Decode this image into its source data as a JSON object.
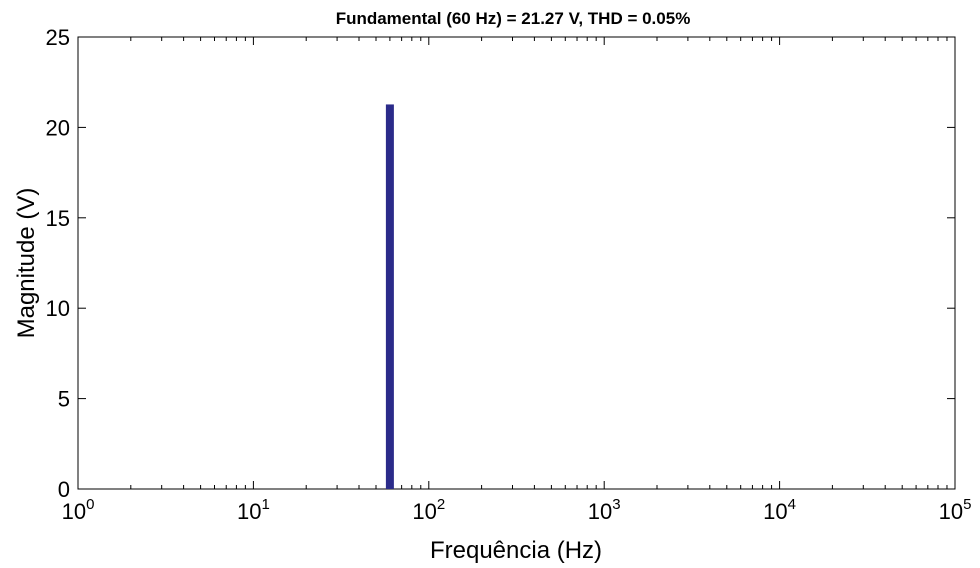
{
  "chart_data": {
    "type": "bar",
    "title": "Fundamental (60 Hz) = 21.27 V, THD = 0.05%",
    "xlabel": "Frequência (Hz)",
    "ylabel": "Magnitude (V)",
    "x_scale": "log",
    "xlim": [
      1,
      100000
    ],
    "ylim": [
      0,
      25
    ],
    "x_ticks": [
      {
        "base": "10",
        "exp": "0",
        "value": 1
      },
      {
        "base": "10",
        "exp": "1",
        "value": 10
      },
      {
        "base": "10",
        "exp": "2",
        "value": 100
      },
      {
        "base": "10",
        "exp": "3",
        "value": 1000
      },
      {
        "base": "10",
        "exp": "4",
        "value": 10000
      },
      {
        "base": "10",
        "exp": "5",
        "value": 100000
      }
    ],
    "y_ticks": [
      {
        "label": "0",
        "value": 0
      },
      {
        "label": "5",
        "value": 5
      },
      {
        "label": "10",
        "value": 10
      },
      {
        "label": "15",
        "value": 15
      },
      {
        "label": "20",
        "value": 20
      },
      {
        "label": "25",
        "value": 25
      }
    ],
    "grid": false,
    "bar_color": "#2b2b8a",
    "bars": [
      {
        "x": 60,
        "y": 21.27
      }
    ]
  }
}
